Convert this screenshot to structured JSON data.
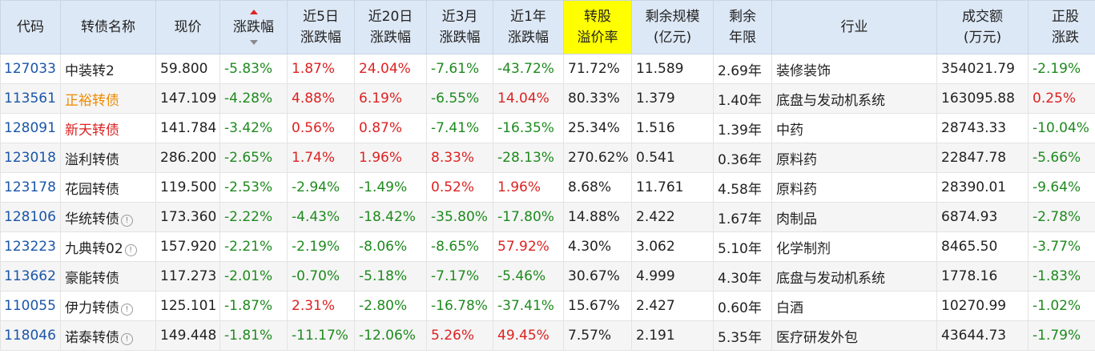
{
  "headers": {
    "code": "代码",
    "name": "转债名称",
    "price": "现价",
    "change": "涨跌幅",
    "chg5d_l1": "近5日",
    "chg5d_l2": "涨跌幅",
    "chg20d_l1": "近20日",
    "chg20d_l2": "涨跌幅",
    "chg3m_l1": "近3月",
    "chg3m_l2": "涨跌幅",
    "chg1y_l1": "近1年",
    "chg1y_l2": "涨跌幅",
    "premium_l1": "转股",
    "premium_l2": "溢价率",
    "scale_l1": "剩余规模",
    "scale_l2": "(亿元)",
    "term_l1": "剩余",
    "term_l2": "年限",
    "industry": "行业",
    "turnover_l1": "成交额",
    "turnover_l2": "(万元)",
    "stock_l1": "正股",
    "stock_l2": "涨跌"
  },
  "colors": {
    "header_bg": "#dde8f6",
    "highlight_header": "#ffff00",
    "link": "#1a56a8",
    "up": "#dd2222",
    "down": "#1e8a1e",
    "orange": "#f08a00"
  },
  "rows": [
    {
      "code": "127033",
      "name": "中装转2",
      "name_color": "black",
      "info": false,
      "price": "59.800",
      "change": "-5.83%",
      "chg5d": "1.87%",
      "chg20d": "24.04%",
      "chg3m": "-7.61%",
      "chg1y": "-43.72%",
      "premium": "71.72%",
      "scale": "11.589",
      "term": "2.69年",
      "industry": "装修装饰",
      "turnover": "354021.79",
      "stock": "-2.19%"
    },
    {
      "code": "113561",
      "name": "正裕转债",
      "name_color": "orange",
      "info": false,
      "price": "147.109",
      "change": "-4.28%",
      "chg5d": "4.88%",
      "chg20d": "6.19%",
      "chg3m": "-6.55%",
      "chg1y": "14.04%",
      "premium": "80.33%",
      "scale": "1.379",
      "term": "1.40年",
      "industry": "底盘与发动机系统",
      "turnover": "163095.88",
      "stock": "0.25%"
    },
    {
      "code": "128091",
      "name": "新天转债",
      "name_color": "up",
      "info": false,
      "price": "141.784",
      "change": "-3.42%",
      "chg5d": "0.56%",
      "chg20d": "0.87%",
      "chg3m": "-7.41%",
      "chg1y": "-16.35%",
      "premium": "25.34%",
      "scale": "1.516",
      "term": "1.39年",
      "industry": "中药",
      "turnover": "28743.33",
      "stock": "-10.04%"
    },
    {
      "code": "123018",
      "name": "溢利转债",
      "name_color": "black",
      "info": false,
      "price": "286.200",
      "change": "-2.65%",
      "chg5d": "1.74%",
      "chg20d": "1.96%",
      "chg3m": "8.33%",
      "chg1y": "-28.13%",
      "premium": "270.62%",
      "scale": "0.541",
      "term": "0.36年",
      "industry": "原料药",
      "turnover": "22847.78",
      "stock": "-5.66%"
    },
    {
      "code": "123178",
      "name": "花园转债",
      "name_color": "black",
      "info": false,
      "price": "119.500",
      "change": "-2.53%",
      "chg5d": "-2.94%",
      "chg20d": "-1.49%",
      "chg3m": "0.52%",
      "chg1y": "1.96%",
      "premium": "8.68%",
      "scale": "11.761",
      "term": "4.58年",
      "industry": "原料药",
      "turnover": "28390.01",
      "stock": "-9.64%"
    },
    {
      "code": "128106",
      "name": "华统转债",
      "name_color": "black",
      "info": true,
      "price": "173.360",
      "change": "-2.22%",
      "chg5d": "-4.43%",
      "chg20d": "-18.42%",
      "chg3m": "-35.80%",
      "chg1y": "-17.80%",
      "premium": "14.88%",
      "scale": "2.422",
      "term": "1.67年",
      "industry": "肉制品",
      "turnover": "6874.93",
      "stock": "-2.78%"
    },
    {
      "code": "123223",
      "name": "九典转02",
      "name_color": "black",
      "info": true,
      "price": "157.920",
      "change": "-2.21%",
      "chg5d": "-2.19%",
      "chg20d": "-8.06%",
      "chg3m": "-8.65%",
      "chg1y": "57.92%",
      "premium": "4.30%",
      "scale": "3.062",
      "term": "5.10年",
      "industry": "化学制剂",
      "turnover": "8465.50",
      "stock": "-3.77%"
    },
    {
      "code": "113662",
      "name": "豪能转债",
      "name_color": "black",
      "info": false,
      "price": "117.273",
      "change": "-2.01%",
      "chg5d": "-0.70%",
      "chg20d": "-5.18%",
      "chg3m": "-7.17%",
      "chg1y": "-5.46%",
      "premium": "30.67%",
      "scale": "4.999",
      "term": "4.30年",
      "industry": "底盘与发动机系统",
      "turnover": "1778.16",
      "stock": "-1.83%"
    },
    {
      "code": "110055",
      "name": "伊力转债",
      "name_color": "black",
      "info": true,
      "price": "125.101",
      "change": "-1.87%",
      "chg5d": "2.31%",
      "chg20d": "-2.80%",
      "chg3m": "-16.78%",
      "chg1y": "-37.41%",
      "premium": "15.67%",
      "scale": "2.427",
      "term": "0.60年",
      "industry": "白酒",
      "turnover": "10270.99",
      "stock": "-1.02%"
    },
    {
      "code": "118046",
      "name": "诺泰转债",
      "name_color": "black",
      "info": true,
      "price": "149.448",
      "change": "-1.81%",
      "chg5d": "-11.17%",
      "chg20d": "-12.06%",
      "chg3m": "5.26%",
      "chg1y": "49.45%",
      "premium": "7.57%",
      "scale": "2.191",
      "term": "5.35年",
      "industry": "医疗研发外包",
      "turnover": "43644.73",
      "stock": "-1.79%"
    }
  ]
}
